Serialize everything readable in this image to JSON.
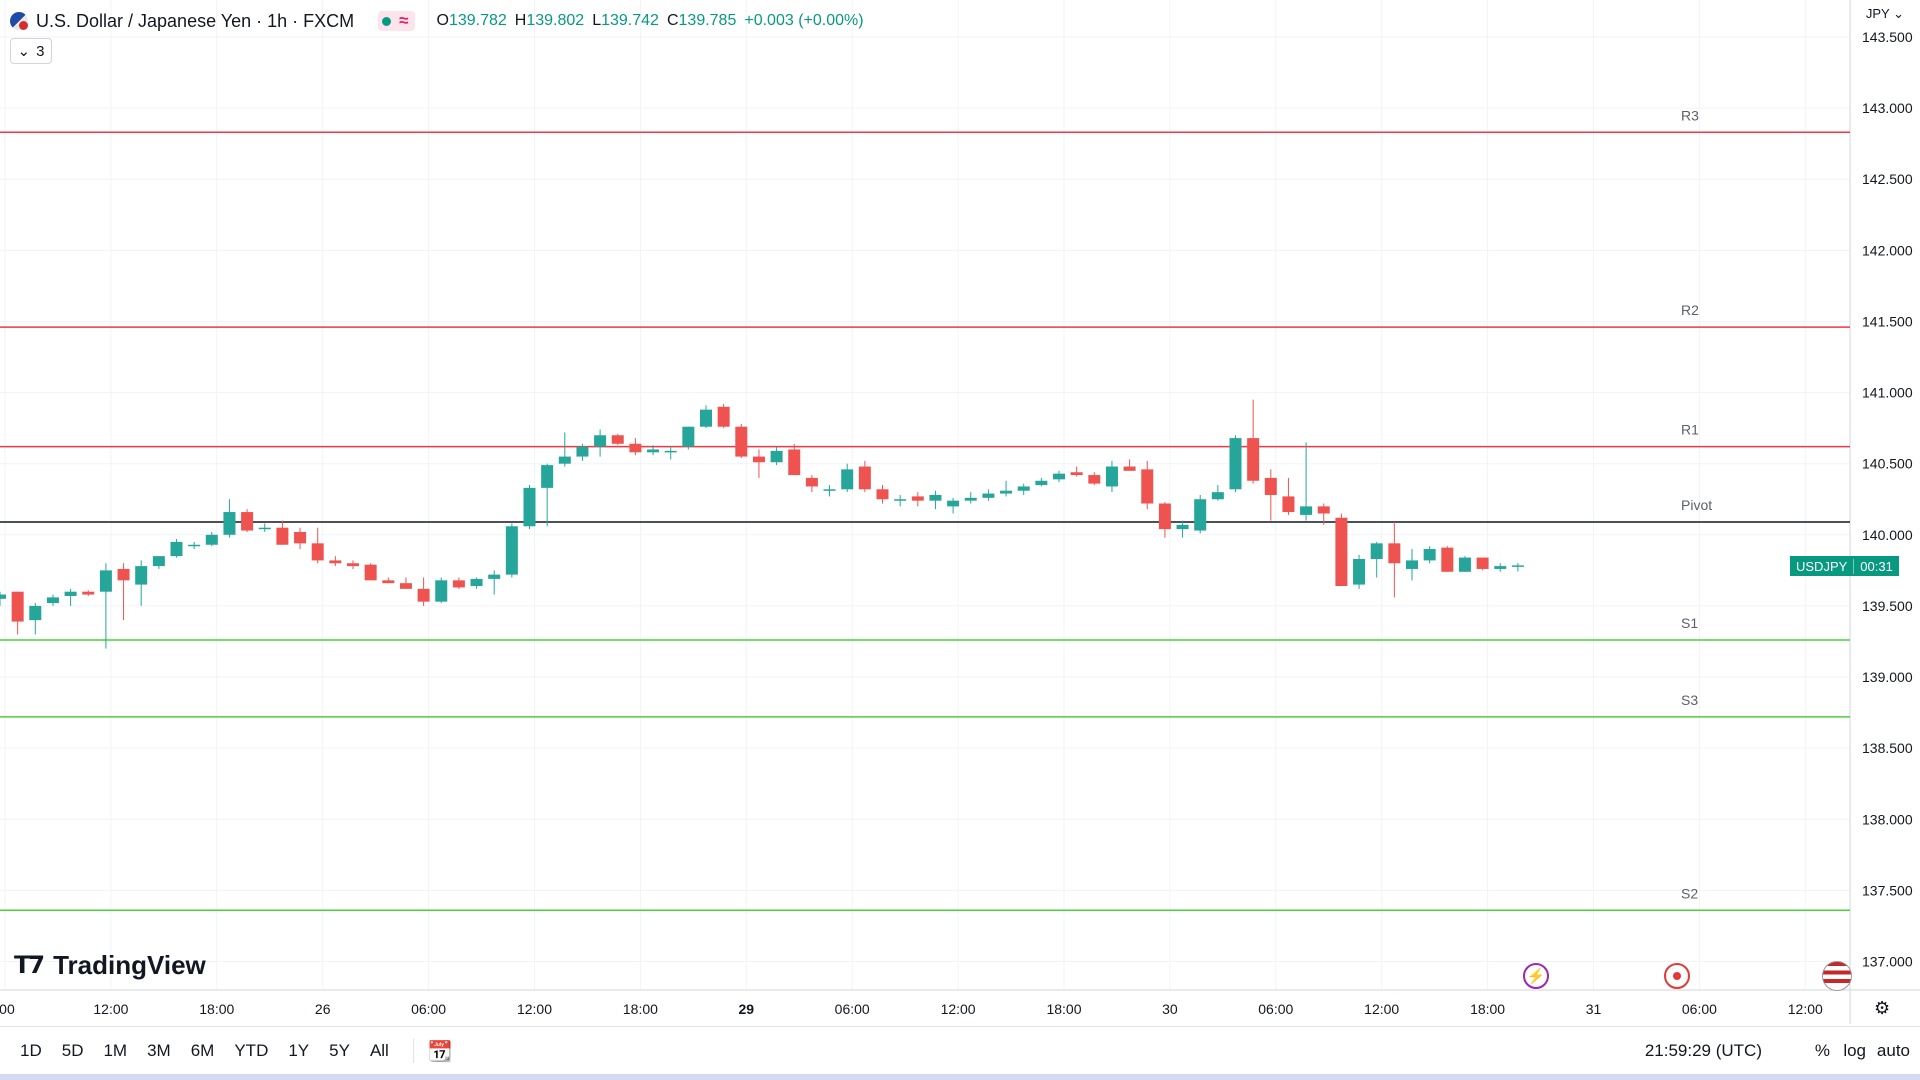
{
  "header": {
    "symbol_title": "U.S. Dollar / Japanese Yen · 1h · FXCM",
    "ohlc": [
      {
        "k": "O",
        "v": "139.782"
      },
      {
        "k": "H",
        "v": "139.802"
      },
      {
        "k": "L",
        "v": "139.742"
      },
      {
        "k": "C",
        "v": "139.785"
      },
      {
        "k": "",
        "v": "+0.003 (+0.00%)"
      }
    ],
    "collapse_count": "3"
  },
  "currency_label": "JPY",
  "price_tag": {
    "symbol": "USDJPY",
    "countdown": "00:31",
    "color": "#089981"
  },
  "logo_text": "TradingView",
  "bottom_bar": {
    "timeframes": [
      "1D",
      "5D",
      "1M",
      "3M",
      "6M",
      "YTD",
      "1Y",
      "5Y",
      "All"
    ],
    "clock": "21:59:29 (UTC)",
    "right_buttons": [
      "%",
      "log",
      "auto"
    ]
  },
  "colors": {
    "up": "#26a69a",
    "down": "#ef5350",
    "resistance": "#f23645",
    "support": "#4cd137",
    "pivot": "#131722"
  },
  "chart_data": {
    "type": "candlestick",
    "ylim": [
      136.85,
      143.6
    ],
    "yticks": [
      "143.500",
      "143.000",
      "142.500",
      "142.000",
      "141.500",
      "141.000",
      "140.500",
      "140.000",
      "139.500",
      "139.000",
      "138.500",
      "138.000",
      "137.500",
      "137.000"
    ],
    "xticks": [
      ":00",
      "12:00",
      "18:00",
      "26",
      "06:00",
      "12:00",
      "18:00",
      "29",
      "06:00",
      "12:00",
      "18:00",
      "30",
      "06:00",
      "12:00",
      "18:00",
      "31",
      "06:00",
      "12:00"
    ],
    "xtick_bold": [
      false,
      false,
      false,
      false,
      false,
      false,
      false,
      true,
      false,
      false,
      false,
      false,
      false,
      false,
      false,
      false,
      false,
      false
    ],
    "levels": [
      {
        "label": "R3",
        "value": 142.83,
        "kind": "resistance"
      },
      {
        "label": "R2",
        "value": 141.46,
        "kind": "resistance"
      },
      {
        "label": "R1",
        "value": 140.62,
        "kind": "resistance"
      },
      {
        "label": "Pivot",
        "value": 140.09,
        "kind": "pivot"
      },
      {
        "label": "S1",
        "value": 139.26,
        "kind": "support"
      },
      {
        "label": "S3",
        "value": 138.72,
        "kind": "support"
      },
      {
        "label": "S2",
        "value": 137.36,
        "kind": "support"
      }
    ],
    "candles": [
      [
        139.55,
        139.6,
        139.5,
        139.58
      ],
      [
        139.6,
        139.6,
        139.3,
        139.39
      ],
      [
        139.4,
        139.52,
        139.3,
        139.5
      ],
      [
        139.52,
        139.58,
        139.5,
        139.56
      ],
      [
        139.57,
        139.62,
        139.5,
        139.6
      ],
      [
        139.6,
        139.61,
        139.57,
        139.58
      ],
      [
        139.6,
        139.8,
        139.2,
        139.75
      ],
      [
        139.76,
        139.8,
        139.4,
        139.68
      ],
      [
        139.65,
        139.82,
        139.5,
        139.78
      ],
      [
        139.78,
        139.85,
        139.76,
        139.85
      ],
      [
        139.85,
        139.97,
        139.84,
        139.95
      ],
      [
        139.92,
        139.95,
        139.9,
        139.93
      ],
      [
        139.93,
        140.02,
        139.92,
        140.0
      ],
      [
        140.0,
        140.25,
        139.98,
        140.16
      ],
      [
        140.16,
        140.18,
        140.02,
        140.03
      ],
      [
        140.05,
        140.08,
        140.02,
        140.05
      ],
      [
        140.05,
        140.1,
        139.93,
        139.93
      ],
      [
        140.02,
        140.05,
        139.9,
        139.94
      ],
      [
        139.94,
        140.05,
        139.8,
        139.82
      ],
      [
        139.82,
        139.85,
        139.78,
        139.8
      ],
      [
        139.8,
        139.82,
        139.76,
        139.78
      ],
      [
        139.79,
        139.8,
        139.68,
        139.68
      ],
      [
        139.68,
        139.7,
        139.66,
        139.66
      ],
      [
        139.66,
        139.7,
        139.62,
        139.62
      ],
      [
        139.62,
        139.7,
        139.5,
        139.53
      ],
      [
        139.53,
        139.7,
        139.52,
        139.68
      ],
      [
        139.68,
        139.7,
        139.62,
        139.63
      ],
      [
        139.64,
        139.7,
        139.62,
        139.69
      ],
      [
        139.69,
        139.75,
        139.58,
        139.72
      ],
      [
        139.72,
        140.08,
        139.7,
        140.06
      ],
      [
        140.06,
        140.35,
        140.04,
        140.33
      ],
      [
        140.33,
        140.5,
        140.06,
        140.49
      ],
      [
        140.5,
        140.72,
        140.48,
        140.55
      ],
      [
        140.55,
        140.64,
        140.52,
        140.62
      ],
      [
        140.62,
        140.74,
        140.55,
        140.7
      ],
      [
        140.7,
        140.71,
        140.63,
        140.64
      ],
      [
        140.64,
        140.68,
        140.56,
        140.58
      ],
      [
        140.58,
        140.63,
        140.56,
        140.6
      ],
      [
        140.58,
        140.62,
        140.53,
        140.59
      ],
      [
        140.62,
        140.76,
        140.6,
        140.76
      ],
      [
        140.76,
        140.91,
        140.75,
        140.88
      ],
      [
        140.9,
        140.92,
        140.75,
        140.76
      ],
      [
        140.76,
        140.78,
        140.54,
        140.55
      ],
      [
        140.55,
        140.6,
        140.4,
        140.51
      ],
      [
        140.51,
        140.62,
        140.49,
        140.59
      ],
      [
        140.6,
        140.64,
        140.42,
        140.42
      ],
      [
        140.4,
        140.42,
        140.3,
        140.34
      ],
      [
        140.32,
        140.35,
        140.27,
        140.32
      ],
      [
        140.32,
        140.5,
        140.3,
        140.46
      ],
      [
        140.48,
        140.52,
        140.3,
        140.32
      ],
      [
        140.32,
        140.35,
        140.22,
        140.25
      ],
      [
        140.25,
        140.28,
        140.2,
        140.25
      ],
      [
        140.27,
        140.3,
        140.2,
        140.24
      ],
      [
        140.24,
        140.31,
        140.18,
        140.28
      ],
      [
        140.2,
        140.26,
        140.15,
        140.24
      ],
      [
        140.24,
        140.3,
        140.22,
        140.26
      ],
      [
        140.26,
        140.32,
        140.24,
        140.29
      ],
      [
        140.29,
        140.38,
        140.27,
        140.31
      ],
      [
        140.31,
        140.36,
        140.28,
        140.34
      ],
      [
        140.35,
        140.4,
        140.34,
        140.38
      ],
      [
        140.39,
        140.45,
        140.37,
        140.43
      ],
      [
        140.44,
        140.48,
        140.41,
        140.42
      ],
      [
        140.42,
        140.44,
        140.35,
        140.36
      ],
      [
        140.34,
        140.52,
        140.3,
        140.48
      ],
      [
        140.48,
        140.53,
        140.45,
        140.45
      ],
      [
        140.46,
        140.52,
        140.18,
        140.22
      ],
      [
        140.22,
        140.23,
        139.98,
        140.04
      ],
      [
        140.04,
        140.1,
        139.98,
        140.07
      ],
      [
        140.03,
        140.28,
        140.01,
        140.25
      ],
      [
        140.25,
        140.35,
        140.24,
        140.3
      ],
      [
        140.32,
        140.7,
        140.3,
        140.68
      ],
      [
        140.68,
        140.95,
        140.36,
        140.38
      ],
      [
        140.4,
        140.46,
        140.1,
        140.28
      ],
      [
        140.27,
        140.4,
        140.14,
        140.16
      ],
      [
        140.14,
        140.65,
        140.1,
        140.2
      ],
      [
        140.2,
        140.22,
        140.07,
        140.15
      ],
      [
        140.12,
        140.15,
        139.64,
        139.64
      ],
      [
        139.65,
        139.86,
        139.62,
        139.83
      ],
      [
        139.83,
        139.95,
        139.7,
        139.94
      ],
      [
        139.94,
        140.09,
        139.56,
        139.8
      ],
      [
        139.76,
        139.9,
        139.68,
        139.82
      ],
      [
        139.82,
        139.92,
        139.8,
        139.9
      ],
      [
        139.91,
        139.92,
        139.74,
        139.74
      ],
      [
        139.74,
        139.85,
        139.74,
        139.84
      ],
      [
        139.84,
        139.84,
        139.75,
        139.76
      ],
      [
        139.76,
        139.8,
        139.74,
        139.78
      ],
      [
        139.785,
        139.802,
        139.742,
        139.785
      ]
    ]
  }
}
